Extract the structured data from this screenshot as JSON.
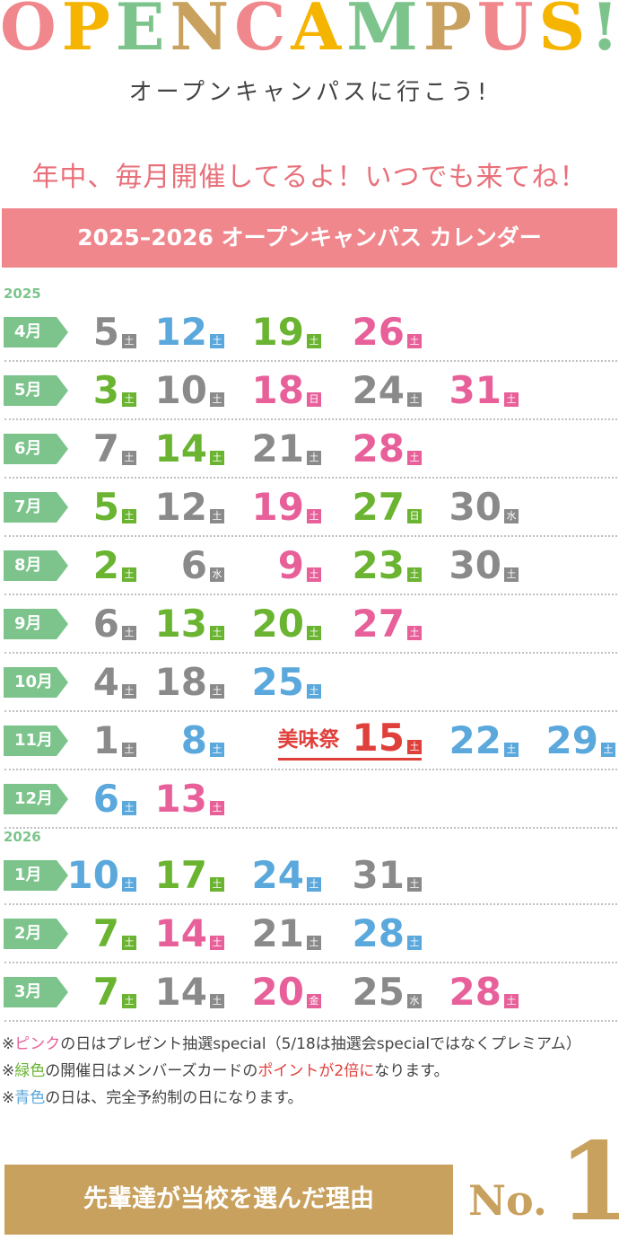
{
  "header": {
    "title_letters": [
      {
        "text": "O",
        "color": "#f0878d"
      },
      {
        "text": "P",
        "color": "#f5b400"
      },
      {
        "text": "E",
        "color": "#7cc48c"
      },
      {
        "text": "N",
        "color": "#c9a15e"
      },
      {
        "text": "C",
        "color": "#f0878d"
      },
      {
        "text": "A",
        "color": "#f5b400"
      },
      {
        "text": "M",
        "color": "#7cc48c"
      },
      {
        "text": "P",
        "color": "#c9a15e"
      },
      {
        "text": "U",
        "color": "#f0878d"
      },
      {
        "text": "S",
        "color": "#f5b400"
      },
      {
        "text": "!",
        "color": "#7cc48c"
      }
    ],
    "subtitle": "オープンキャンパスに行こう!",
    "tagline": "年中、毎月開催してるよ！いつでも来てね！",
    "banner": "2025–2026 オープンキャンパス カレンダー"
  },
  "calendar": [
    {
      "year": "2025",
      "months": [
        {
          "month": "4月",
          "dates": [
            {
              "day": 5,
              "weekday": "土",
              "color": "#8a8a8a"
            },
            {
              "day": 12,
              "weekday": "土",
              "color": "#5ba8dc"
            },
            {
              "day": 19,
              "weekday": "土",
              "color": "#6ab431"
            },
            {
              "day": 26,
              "weekday": "土",
              "color": "#e8609a"
            }
          ]
        },
        {
          "month": "5月",
          "dates": [
            {
              "day": 3,
              "weekday": "土",
              "color": "#6ab431"
            },
            {
              "day": 10,
              "weekday": "土",
              "color": "#8a8a8a"
            },
            {
              "day": 18,
              "weekday": "日",
              "color": "#e8609a"
            },
            {
              "day": 24,
              "weekday": "土",
              "color": "#8a8a8a"
            },
            {
              "day": 31,
              "weekday": "土",
              "color": "#e8609a"
            }
          ]
        },
        {
          "month": "6月",
          "dates": [
            {
              "day": 7,
              "weekday": "土",
              "color": "#8a8a8a"
            },
            {
              "day": 14,
              "weekday": "土",
              "color": "#6ab431"
            },
            {
              "day": 21,
              "weekday": "土",
              "color": "#8a8a8a"
            },
            {
              "day": 28,
              "weekday": "土",
              "color": "#e8609a"
            }
          ]
        },
        {
          "month": "7月",
          "dates": [
            {
              "day": 5,
              "weekday": "土",
              "color": "#6ab431"
            },
            {
              "day": 12,
              "weekday": "土",
              "color": "#8a8a8a"
            },
            {
              "day": 19,
              "weekday": "土",
              "color": "#e8609a"
            },
            {
              "day": 27,
              "weekday": "日",
              "color": "#6ab431"
            },
            {
              "day": 30,
              "weekday": "水",
              "color": "#8a8a8a"
            }
          ]
        },
        {
          "month": "8月",
          "dates": [
            {
              "day": 2,
              "weekday": "土",
              "color": "#6ab431"
            },
            {
              "day": 6,
              "weekday": "水",
              "color": "#8a8a8a"
            },
            {
              "day": 9,
              "weekday": "土",
              "color": "#e8609a"
            },
            {
              "day": 23,
              "weekday": "土",
              "color": "#6ab431"
            },
            {
              "day": 30,
              "weekday": "土",
              "color": "#8a8a8a"
            }
          ]
        },
        {
          "month": "9月",
          "dates": [
            {
              "day": 6,
              "weekday": "土",
              "color": "#8a8a8a"
            },
            {
              "day": 13,
              "weekday": "土",
              "color": "#6ab431"
            },
            {
              "day": 20,
              "weekday": "土",
              "color": "#6ab431"
            },
            {
              "day": 27,
              "weekday": "土",
              "color": "#e8609a"
            }
          ]
        },
        {
          "month": "10月",
          "dates": [
            {
              "day": 4,
              "weekday": "土",
              "color": "#8a8a8a"
            },
            {
              "day": 18,
              "weekday": "土",
              "color": "#8a8a8a"
            },
            {
              "day": 25,
              "weekday": "土",
              "color": "#5ba8dc"
            }
          ]
        },
        {
          "month": "11月",
          "dates": [
            {
              "day": 1,
              "weekday": "土",
              "color": "#8a8a8a"
            },
            {
              "day": 8,
              "weekday": "土",
              "color": "#5ba8dc"
            },
            {
              "day": 15,
              "weekday": "土",
              "color": "#e0403c",
              "event": "美味祭"
            },
            {
              "day": 22,
              "weekday": "土",
              "color": "#5ba8dc"
            },
            {
              "day": 29,
              "weekday": "土",
              "color": "#5ba8dc"
            }
          ]
        },
        {
          "month": "12月",
          "dates": [
            {
              "day": 6,
              "weekday": "土",
              "color": "#5ba8dc"
            },
            {
              "day": 13,
              "weekday": "土",
              "color": "#e8609a"
            }
          ]
        }
      ]
    },
    {
      "year": "2026",
      "months": [
        {
          "month": "1月",
          "dates": [
            {
              "day": 10,
              "weekday": "土",
              "color": "#5ba8dc"
            },
            {
              "day": 17,
              "weekday": "土",
              "color": "#6ab431"
            },
            {
              "day": 24,
              "weekday": "土",
              "color": "#5ba8dc"
            },
            {
              "day": 31,
              "weekday": "土",
              "color": "#8a8a8a"
            }
          ]
        },
        {
          "month": "2月",
          "dates": [
            {
              "day": 7,
              "weekday": "土",
              "color": "#6ab431"
            },
            {
              "day": 14,
              "weekday": "土",
              "color": "#e8609a"
            },
            {
              "day": 21,
              "weekday": "土",
              "color": "#8a8a8a"
            },
            {
              "day": 28,
              "weekday": "土",
              "color": "#5ba8dc"
            }
          ]
        },
        {
          "month": "3月",
          "dates": [
            {
              "day": 7,
              "weekday": "土",
              "color": "#6ab431"
            },
            {
              "day": 14,
              "weekday": "土",
              "color": "#8a8a8a"
            },
            {
              "day": 20,
              "weekday": "金",
              "color": "#e8609a"
            },
            {
              "day": 25,
              "weekday": "水",
              "color": "#8a8a8a"
            },
            {
              "day": 28,
              "weekday": "土",
              "color": "#e8609a"
            }
          ]
        }
      ]
    }
  ],
  "notes": [
    [
      {
        "text": "※",
        "color": "#444444"
      },
      {
        "text": "ピンク",
        "color": "#e8609a"
      },
      {
        "text": "の日はプレゼント抽選special（5/18は抽選会specialではなくプレミアム）",
        "color": "#444444"
      }
    ],
    [
      {
        "text": "※",
        "color": "#444444"
      },
      {
        "text": "緑色",
        "color": "#6ab431"
      },
      {
        "text": "の開催日はメンバーズカードの",
        "color": "#444444"
      },
      {
        "text": "ポイントが2倍に",
        "color": "#e0403c"
      },
      {
        "text": "なります。",
        "color": "#444444"
      }
    ],
    [
      {
        "text": "※",
        "color": "#444444"
      },
      {
        "text": "青色",
        "color": "#5ba8dc"
      },
      {
        "text": "の日は、完全予約制の日になります。",
        "color": "#444444"
      }
    ]
  ],
  "footer": {
    "reason": "先輩達が当校を選んだ理由",
    "rank_label": "No.",
    "rank": "1"
  }
}
